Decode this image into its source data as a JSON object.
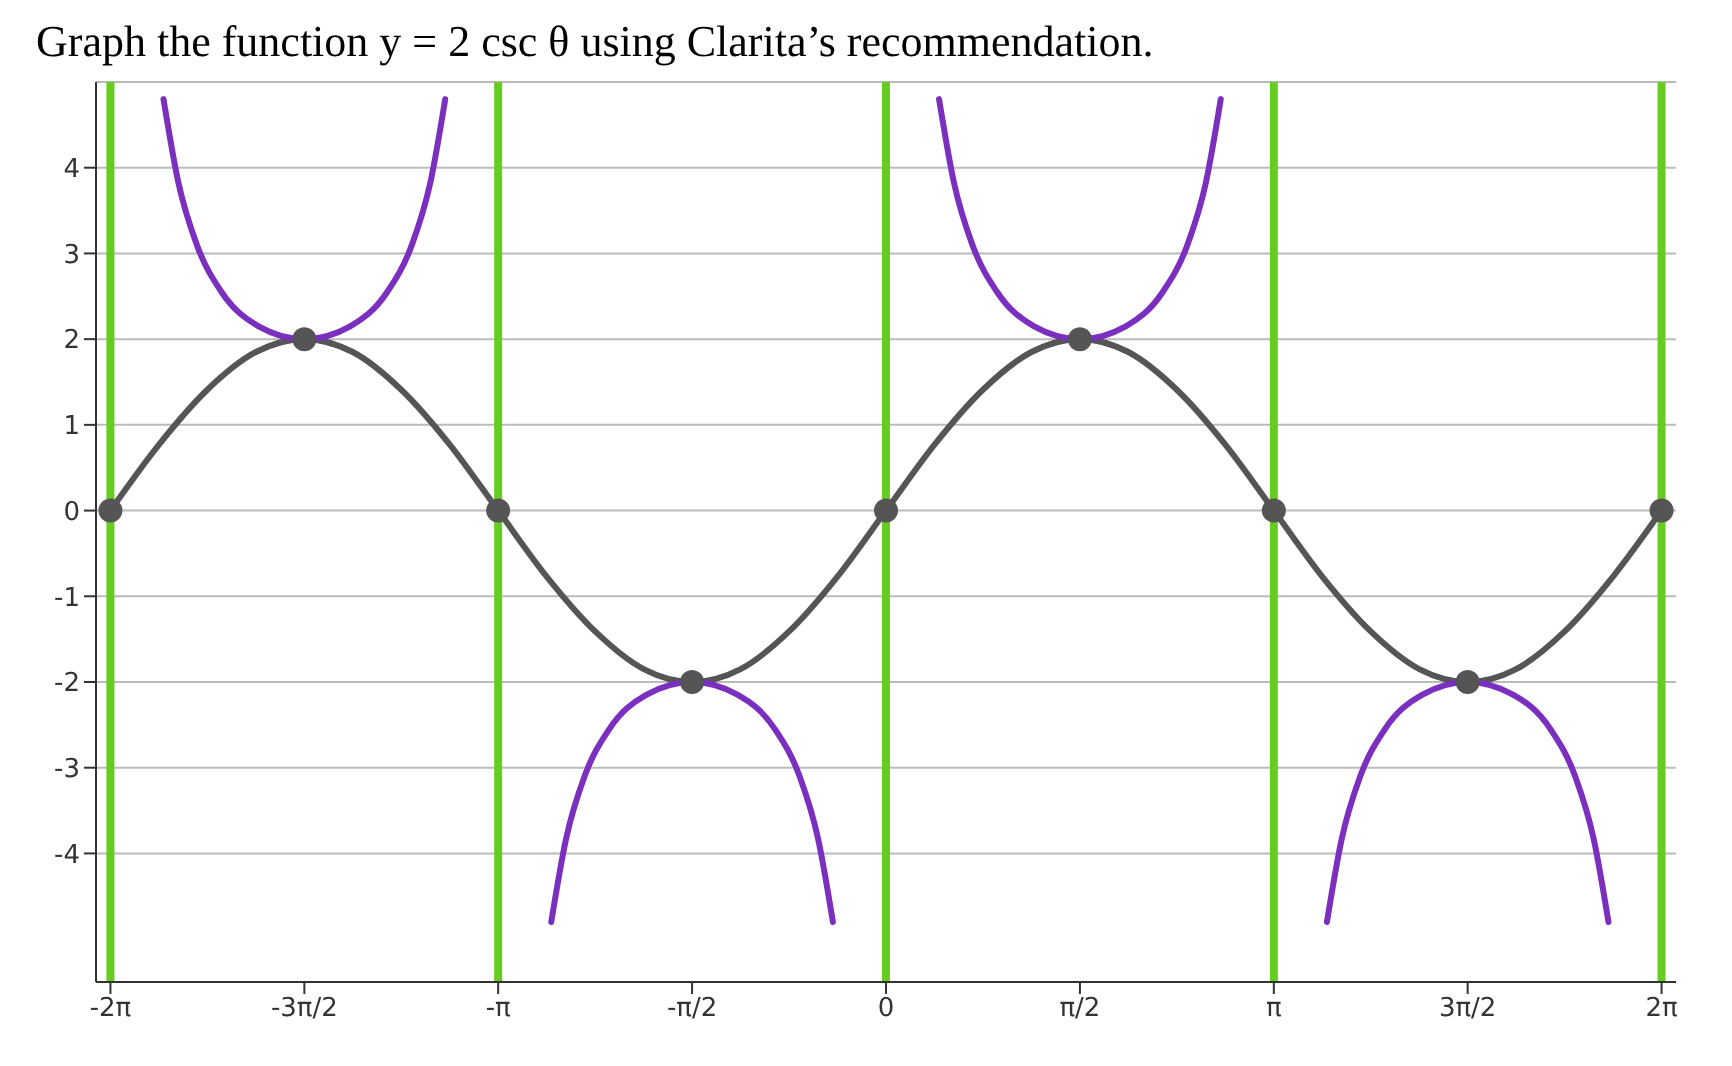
{
  "chart_data": {
    "type": "line",
    "title": "Graph the function y = 2 csc θ using Clarita’s recommendation.",
    "xlim": [
      -6.4,
      6.4
    ],
    "ylim": [
      -5.5,
      5
    ],
    "xticks": [
      {
        "value": -6.283,
        "label": "-2π"
      },
      {
        "value": -4.712,
        "label": "-3π/2"
      },
      {
        "value": -3.142,
        "label": "-π"
      },
      {
        "value": -1.571,
        "label": "-π/2"
      },
      {
        "value": 0,
        "label": "0"
      },
      {
        "value": 1.571,
        "label": "π/2"
      },
      {
        "value": 3.142,
        "label": "π"
      },
      {
        "value": 4.712,
        "label": "3π/2"
      },
      {
        "value": 6.283,
        "label": "2π"
      }
    ],
    "yticks": [
      -4,
      -3,
      -2,
      -1,
      0,
      1,
      2,
      3,
      4
    ],
    "grid": true,
    "marker": "none",
    "line_style": "solid",
    "ref_lines": [
      {
        "axis": "x",
        "value": -6.283,
        "color": "#66cc22"
      },
      {
        "axis": "x",
        "value": -3.142,
        "color": "#66cc22"
      },
      {
        "axis": "x",
        "value": 0,
        "color": "#66cc22"
      },
      {
        "axis": "x",
        "value": 3.142,
        "color": "#66cc22"
      },
      {
        "axis": "x",
        "value": 6.283,
        "color": "#66cc22"
      }
    ],
    "series": [
      {
        "color": "#555555",
        "x": [
          -6.283,
          -5.89,
          -5.498,
          -5.105,
          -4.712,
          -4.32,
          -3.927,
          -3.534,
          -3.142,
          -2.749,
          -2.356,
          -1.963,
          -1.571,
          -1.178,
          -0.785,
          -0.393,
          0,
          0.393,
          0.785,
          1.178,
          1.571,
          1.963,
          2.356,
          2.749,
          3.142,
          3.534,
          3.927,
          4.32,
          4.712,
          5.105,
          5.498,
          5.89,
          6.283
        ],
        "values": [
          0,
          0.77,
          1.41,
          1.85,
          2,
          1.85,
          1.41,
          0.77,
          0,
          -0.77,
          -1.41,
          -1.85,
          -2,
          -1.85,
          -1.41,
          -0.77,
          0,
          0.77,
          1.41,
          1.85,
          2,
          1.85,
          1.41,
          0.77,
          0,
          -0.77,
          -1.41,
          -1.85,
          -2,
          -1.85,
          -1.41,
          -0.77,
          0
        ]
      },
      {
        "color": "#7b2fbf",
        "x": [
          -5.853,
          -5.733,
          -5.583,
          -5.383,
          -5.083,
          -4.712,
          -4.341,
          -4.041,
          -3.841,
          -3.691,
          -3.571
        ],
        "values": [
          4.8,
          3.83,
          3.1,
          2.55,
          2.15,
          2,
          2.15,
          2.55,
          3.1,
          3.83,
          4.8
        ]
      },
      {
        "color": "#7b2fbf",
        "x": [
          -2.712,
          -2.592,
          -2.442,
          -2.242,
          -1.942,
          -1.571,
          -1.2,
          -0.9,
          -0.7,
          -0.55,
          -0.43
        ],
        "values": [
          -4.8,
          -3.83,
          -3.1,
          -2.55,
          -2.15,
          -2,
          -2.15,
          -2.55,
          -3.1,
          -3.83,
          -4.8
        ]
      },
      {
        "color": "#7b2fbf",
        "x": [
          0.43,
          0.55,
          0.7,
          0.9,
          1.2,
          1.571,
          1.942,
          2.242,
          2.442,
          2.592,
          2.712
        ],
        "values": [
          4.8,
          3.83,
          3.1,
          2.55,
          2.15,
          2,
          2.15,
          2.55,
          3.1,
          3.83,
          4.8
        ]
      },
      {
        "color": "#7b2fbf",
        "x": [
          3.572,
          3.692,
          3.842,
          4.042,
          4.342,
          4.712,
          5.083,
          5.383,
          5.583,
          5.733,
          5.853
        ],
        "values": [
          -4.8,
          -3.83,
          -3.1,
          -2.55,
          -2.15,
          -2,
          -2.15,
          -2.55,
          -3.1,
          -3.83,
          -4.8
        ]
      },
      {
        "type": "scatter",
        "color": "#555555",
        "marker": "circle",
        "x": [
          -6.283,
          -4.712,
          -3.142,
          -1.571,
          0,
          1.571,
          3.142,
          4.712,
          6.283
        ],
        "values": [
          0,
          2,
          0,
          -2,
          0,
          2,
          0,
          -2,
          0
        ]
      }
    ]
  }
}
